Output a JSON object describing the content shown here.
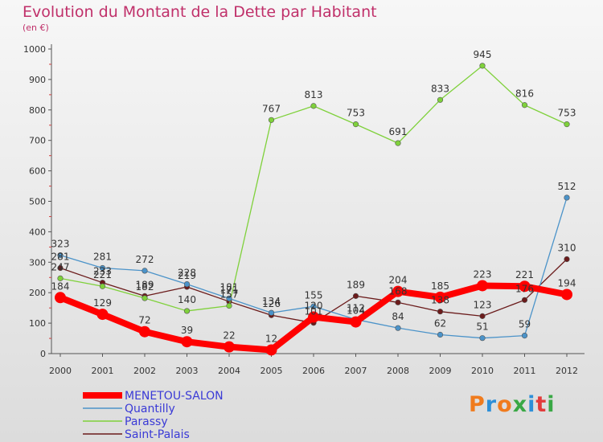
{
  "header": {
    "title": "Evolution du Montant de la Dette par Habitant",
    "subtitle": "(en €)"
  },
  "logo": {
    "text": "Proxiti",
    "colors": [
      "#f07b1d",
      "#2d8fd8",
      "#f07b1d",
      "#39a845",
      "#2d8fd8",
      "#e23c3c",
      "#39a845"
    ]
  },
  "chart_data": {
    "type": "line",
    "title": "Evolution du Montant de la Dette par Habitant",
    "subtitle": "(en €)",
    "xlabel": "",
    "ylabel": "",
    "x": [
      "2000",
      "2001",
      "2002",
      "2003",
      "2004",
      "2005",
      "2006",
      "2007",
      "2008",
      "2009",
      "2010",
      "2011",
      "2012"
    ],
    "ylim": [
      0,
      1000
    ],
    "yticks": [
      0,
      100,
      200,
      300,
      400,
      500,
      600,
      700,
      800,
      900,
      1000
    ],
    "grid": false,
    "legend_position": "bottom-left",
    "series": [
      {
        "name": "MENETOU-SALON",
        "color": "#ff0000",
        "values": [
          184,
          129,
          72,
          39,
          22,
          12,
          120,
          104,
          204,
          185,
          223,
          221,
          194
        ]
      },
      {
        "name": "Quantilly",
        "color": "#4b93c9",
        "values": [
          323,
          281,
          272,
          228,
          181,
          134,
          155,
          112,
          84,
          62,
          51,
          59,
          512
        ]
      },
      {
        "name": "Parassy",
        "color": "#7fd13b",
        "values": [
          247,
          221,
          182,
          140,
          157,
          767,
          813,
          753,
          691,
          833,
          945,
          816,
          753
        ]
      },
      {
        "name": "Saint-Palais",
        "color": "#6b1b1b",
        "values": [
          281,
          233,
          189,
          219,
          171,
          126,
          101,
          189,
          168,
          138,
          123,
          176,
          310
        ]
      }
    ]
  }
}
